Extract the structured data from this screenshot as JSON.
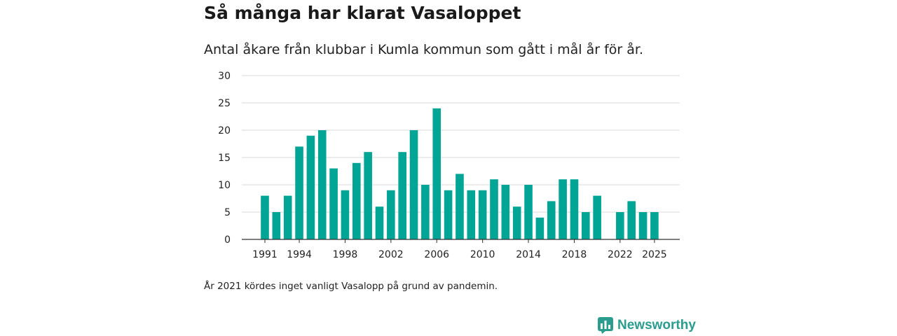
{
  "header": {
    "title": "Så många har klarat Vasaloppet",
    "subtitle": "Antal åkare från klubbar i Kumla kommun som gått i mål år för år."
  },
  "footer": {
    "note": "År 2021 kördes inget vanligt Vasalopp på grund av pandemin.",
    "brand": "Newsworthy"
  },
  "colors": {
    "bar": "#00a596",
    "grid": "#d9d9d9",
    "axis": "#333333",
    "brand": "#2a9d8f"
  },
  "chart_data": {
    "type": "bar",
    "title": "Så många har klarat Vasaloppet",
    "xlabel": "",
    "ylabel": "",
    "ylim": [
      0,
      30
    ],
    "yticks": [
      0,
      5,
      10,
      15,
      20,
      25,
      30
    ],
    "xticks": [
      "1991",
      "1994",
      "1998",
      "2002",
      "2006",
      "2010",
      "2014",
      "2018",
      "2022",
      "2025"
    ],
    "categories": [
      "1991",
      "1992",
      "1993",
      "1994",
      "1995",
      "1996",
      "1997",
      "1998",
      "1999",
      "2000",
      "2001",
      "2002",
      "2003",
      "2004",
      "2005",
      "2006",
      "2007",
      "2008",
      "2009",
      "2010",
      "2011",
      "2012",
      "2013",
      "2014",
      "2015",
      "2016",
      "2017",
      "2018",
      "2019",
      "2020",
      "2021",
      "2022",
      "2023",
      "2024",
      "2025"
    ],
    "values": [
      8,
      5,
      8,
      17,
      19,
      20,
      13,
      9,
      14,
      16,
      6,
      9,
      16,
      20,
      10,
      24,
      9,
      12,
      9,
      9,
      11,
      10,
      6,
      10,
      4,
      7,
      11,
      11,
      5,
      8,
      null,
      5,
      7,
      5,
      5
    ],
    "grid": true
  }
}
